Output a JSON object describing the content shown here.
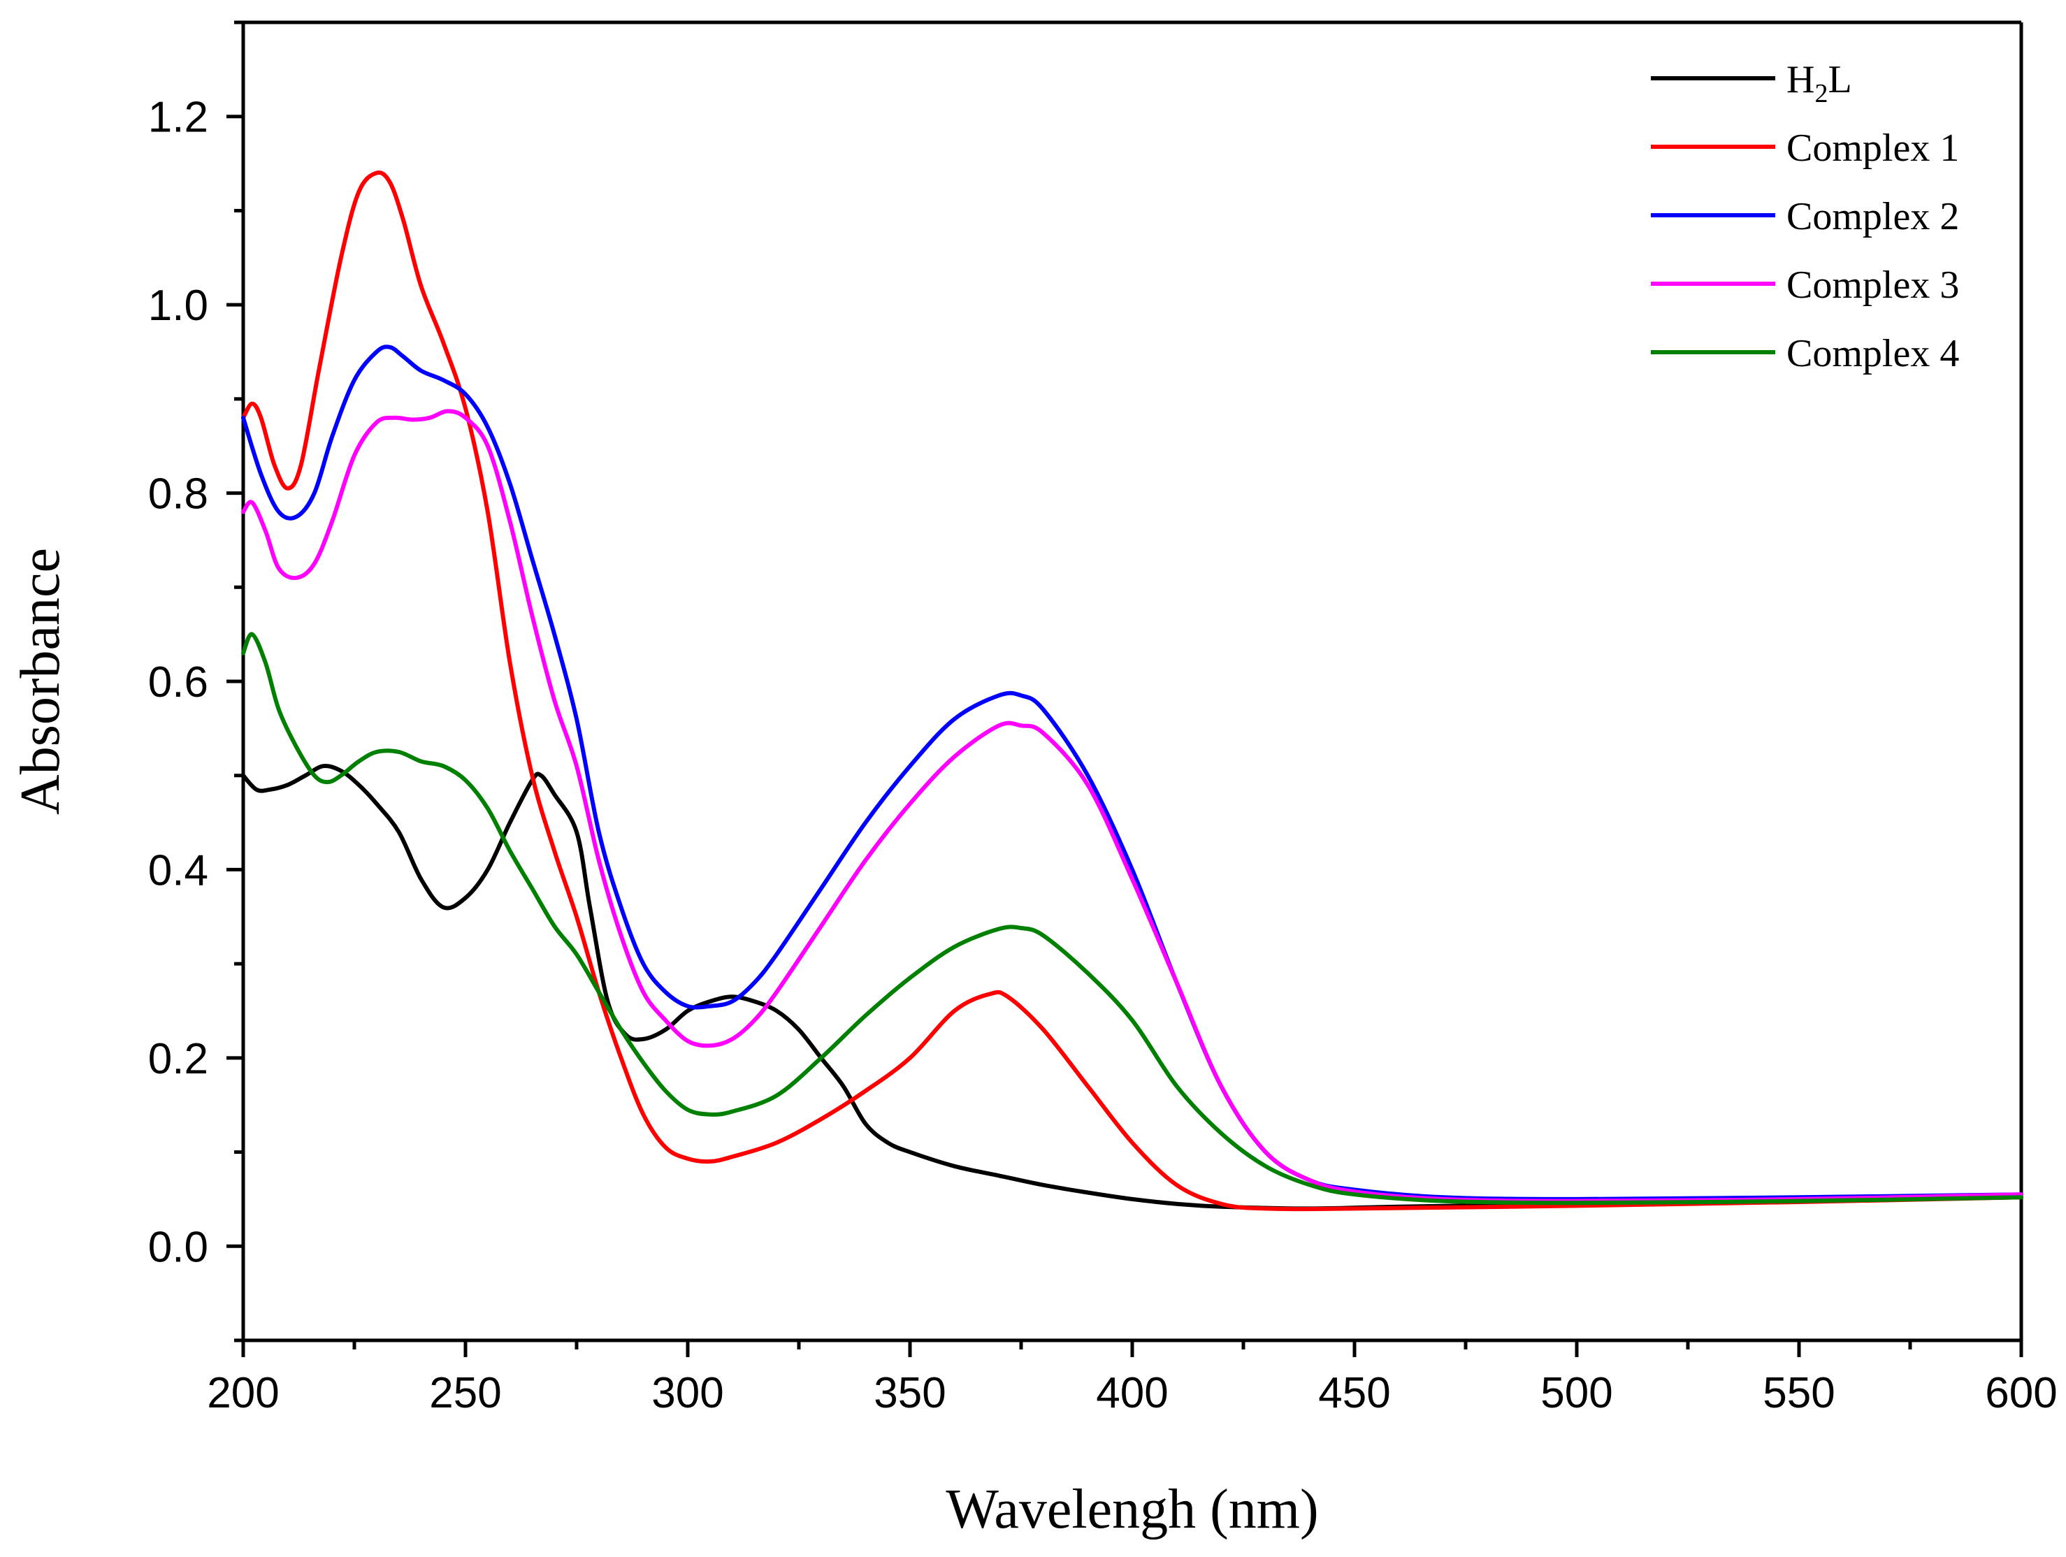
{
  "chart_data": {
    "type": "line",
    "xlabel": "Wavelengh (nm)",
    "ylabel": "Absorbance",
    "xlim": [
      200,
      600
    ],
    "ylim": [
      -0.1,
      1.3
    ],
    "x_ticks": [
      200,
      250,
      300,
      350,
      400,
      450,
      500,
      550,
      600
    ],
    "y_ticks": [
      0.0,
      0.2,
      0.4,
      0.6,
      0.8,
      1.0,
      1.2
    ],
    "y_tick_labels": [
      "0.0",
      "0.2",
      "0.4",
      "0.6",
      "0.8",
      "1.0",
      "1.2"
    ],
    "x_minor_step": 25,
    "y_minor_step": 0.1,
    "grid": false,
    "legend_position": "top-right",
    "series": [
      {
        "name": "H2L",
        "legend_main": "H",
        "legend_sub": "2",
        "legend_tail": "L",
        "color": "#000000",
        "points": [
          [
            200,
            0.5
          ],
          [
            203,
            0.485
          ],
          [
            206,
            0.485
          ],
          [
            210,
            0.49
          ],
          [
            214,
            0.5
          ],
          [
            218,
            0.51
          ],
          [
            222,
            0.505
          ],
          [
            226,
            0.49
          ],
          [
            230,
            0.47
          ],
          [
            235,
            0.44
          ],
          [
            240,
            0.39
          ],
          [
            245,
            0.36
          ],
          [
            250,
            0.37
          ],
          [
            255,
            0.4
          ],
          [
            260,
            0.45
          ],
          [
            265,
            0.495
          ],
          [
            267,
            0.5
          ],
          [
            270,
            0.48
          ],
          [
            275,
            0.44
          ],
          [
            278,
            0.36
          ],
          [
            282,
            0.26
          ],
          [
            286,
            0.225
          ],
          [
            290,
            0.22
          ],
          [
            295,
            0.23
          ],
          [
            300,
            0.25
          ],
          [
            305,
            0.26
          ],
          [
            310,
            0.265
          ],
          [
            315,
            0.26
          ],
          [
            320,
            0.25
          ],
          [
            325,
            0.23
          ],
          [
            330,
            0.2
          ],
          [
            335,
            0.17
          ],
          [
            340,
            0.13
          ],
          [
            345,
            0.11
          ],
          [
            350,
            0.1
          ],
          [
            360,
            0.085
          ],
          [
            370,
            0.075
          ],
          [
            380,
            0.065
          ],
          [
            390,
            0.057
          ],
          [
            400,
            0.05
          ],
          [
            410,
            0.045
          ],
          [
            420,
            0.042
          ],
          [
            440,
            0.04
          ],
          [
            460,
            0.042
          ],
          [
            500,
            0.045
          ],
          [
            550,
            0.048
          ],
          [
            600,
            0.052
          ]
        ]
      },
      {
        "name": "Complex 1",
        "color": "#ff0000",
        "points": [
          [
            200,
            0.88
          ],
          [
            202,
            0.895
          ],
          [
            204,
            0.88
          ],
          [
            207,
            0.83
          ],
          [
            210,
            0.805
          ],
          [
            213,
            0.83
          ],
          [
            217,
            0.93
          ],
          [
            222,
            1.05
          ],
          [
            226,
            1.12
          ],
          [
            230,
            1.14
          ],
          [
            233,
            1.13
          ],
          [
            236,
            1.09
          ],
          [
            240,
            1.02
          ],
          [
            245,
            0.96
          ],
          [
            250,
            0.89
          ],
          [
            255,
            0.78
          ],
          [
            260,
            0.62
          ],
          [
            265,
            0.5
          ],
          [
            270,
            0.42
          ],
          [
            275,
            0.35
          ],
          [
            280,
            0.27
          ],
          [
            285,
            0.2
          ],
          [
            290,
            0.14
          ],
          [
            295,
            0.105
          ],
          [
            300,
            0.093
          ],
          [
            305,
            0.09
          ],
          [
            310,
            0.095
          ],
          [
            320,
            0.11
          ],
          [
            330,
            0.135
          ],
          [
            340,
            0.165
          ],
          [
            350,
            0.2
          ],
          [
            360,
            0.25
          ],
          [
            368,
            0.268
          ],
          [
            372,
            0.265
          ],
          [
            380,
            0.23
          ],
          [
            390,
            0.17
          ],
          [
            400,
            0.11
          ],
          [
            410,
            0.065
          ],
          [
            420,
            0.045
          ],
          [
            430,
            0.04
          ],
          [
            450,
            0.04
          ],
          [
            500,
            0.043
          ],
          [
            550,
            0.047
          ],
          [
            600,
            0.052
          ]
        ]
      },
      {
        "name": "Complex 2",
        "color": "#0000ff",
        "points": [
          [
            200,
            0.88
          ],
          [
            204,
            0.82
          ],
          [
            208,
            0.78
          ],
          [
            212,
            0.775
          ],
          [
            216,
            0.8
          ],
          [
            220,
            0.86
          ],
          [
            225,
            0.92
          ],
          [
            230,
            0.95
          ],
          [
            233,
            0.955
          ],
          [
            236,
            0.945
          ],
          [
            240,
            0.93
          ],
          [
            245,
            0.92
          ],
          [
            250,
            0.905
          ],
          [
            255,
            0.87
          ],
          [
            260,
            0.81
          ],
          [
            265,
            0.73
          ],
          [
            270,
            0.65
          ],
          [
            275,
            0.56
          ],
          [
            280,
            0.44
          ],
          [
            285,
            0.36
          ],
          [
            290,
            0.3
          ],
          [
            295,
            0.27
          ],
          [
            300,
            0.255
          ],
          [
            305,
            0.255
          ],
          [
            310,
            0.26
          ],
          [
            315,
            0.28
          ],
          [
            320,
            0.31
          ],
          [
            330,
            0.38
          ],
          [
            340,
            0.45
          ],
          [
            350,
            0.51
          ],
          [
            360,
            0.56
          ],
          [
            370,
            0.585
          ],
          [
            375,
            0.585
          ],
          [
            380,
            0.57
          ],
          [
            390,
            0.5
          ],
          [
            400,
            0.4
          ],
          [
            410,
            0.28
          ],
          [
            420,
            0.17
          ],
          [
            430,
            0.1
          ],
          [
            440,
            0.07
          ],
          [
            450,
            0.06
          ],
          [
            470,
            0.052
          ],
          [
            500,
            0.05
          ],
          [
            550,
            0.052
          ],
          [
            600,
            0.055
          ]
        ]
      },
      {
        "name": "Complex 3",
        "color": "#ff00ff",
        "points": [
          [
            200,
            0.78
          ],
          [
            202,
            0.79
          ],
          [
            205,
            0.76
          ],
          [
            208,
            0.72
          ],
          [
            212,
            0.71
          ],
          [
            216,
            0.725
          ],
          [
            220,
            0.77
          ],
          [
            225,
            0.84
          ],
          [
            230,
            0.875
          ],
          [
            234,
            0.88
          ],
          [
            238,
            0.878
          ],
          [
            242,
            0.88
          ],
          [
            246,
            0.887
          ],
          [
            250,
            0.88
          ],
          [
            255,
            0.85
          ],
          [
            260,
            0.77
          ],
          [
            265,
            0.67
          ],
          [
            270,
            0.58
          ],
          [
            275,
            0.51
          ],
          [
            280,
            0.41
          ],
          [
            285,
            0.33
          ],
          [
            290,
            0.27
          ],
          [
            295,
            0.24
          ],
          [
            300,
            0.218
          ],
          [
            305,
            0.213
          ],
          [
            310,
            0.22
          ],
          [
            315,
            0.24
          ],
          [
            320,
            0.27
          ],
          [
            330,
            0.34
          ],
          [
            340,
            0.41
          ],
          [
            350,
            0.47
          ],
          [
            360,
            0.52
          ],
          [
            370,
            0.553
          ],
          [
            375,
            0.553
          ],
          [
            380,
            0.545
          ],
          [
            390,
            0.49
          ],
          [
            400,
            0.39
          ],
          [
            410,
            0.28
          ],
          [
            420,
            0.17
          ],
          [
            430,
            0.1
          ],
          [
            440,
            0.07
          ],
          [
            450,
            0.058
          ],
          [
            470,
            0.05
          ],
          [
            500,
            0.048
          ],
          [
            550,
            0.05
          ],
          [
            600,
            0.055
          ]
        ]
      },
      {
        "name": "Complex 4",
        "color": "#008000",
        "points": [
          [
            200,
            0.63
          ],
          [
            202,
            0.65
          ],
          [
            205,
            0.62
          ],
          [
            208,
            0.57
          ],
          [
            212,
            0.53
          ],
          [
            216,
            0.5
          ],
          [
            219,
            0.493
          ],
          [
            222,
            0.5
          ],
          [
            226,
            0.515
          ],
          [
            230,
            0.525
          ],
          [
            235,
            0.525
          ],
          [
            240,
            0.515
          ],
          [
            245,
            0.51
          ],
          [
            250,
            0.495
          ],
          [
            255,
            0.465
          ],
          [
            260,
            0.42
          ],
          [
            265,
            0.38
          ],
          [
            270,
            0.34
          ],
          [
            275,
            0.31
          ],
          [
            280,
            0.27
          ],
          [
            285,
            0.23
          ],
          [
            290,
            0.195
          ],
          [
            295,
            0.165
          ],
          [
            300,
            0.145
          ],
          [
            305,
            0.14
          ],
          [
            310,
            0.143
          ],
          [
            320,
            0.16
          ],
          [
            330,
            0.2
          ],
          [
            340,
            0.245
          ],
          [
            350,
            0.285
          ],
          [
            360,
            0.318
          ],
          [
            370,
            0.337
          ],
          [
            375,
            0.338
          ],
          [
            380,
            0.33
          ],
          [
            390,
            0.29
          ],
          [
            400,
            0.24
          ],
          [
            410,
            0.17
          ],
          [
            420,
            0.12
          ],
          [
            430,
            0.085
          ],
          [
            440,
            0.065
          ],
          [
            450,
            0.055
          ],
          [
            470,
            0.048
          ],
          [
            500,
            0.046
          ],
          [
            550,
            0.048
          ],
          [
            600,
            0.052
          ]
        ]
      }
    ]
  }
}
